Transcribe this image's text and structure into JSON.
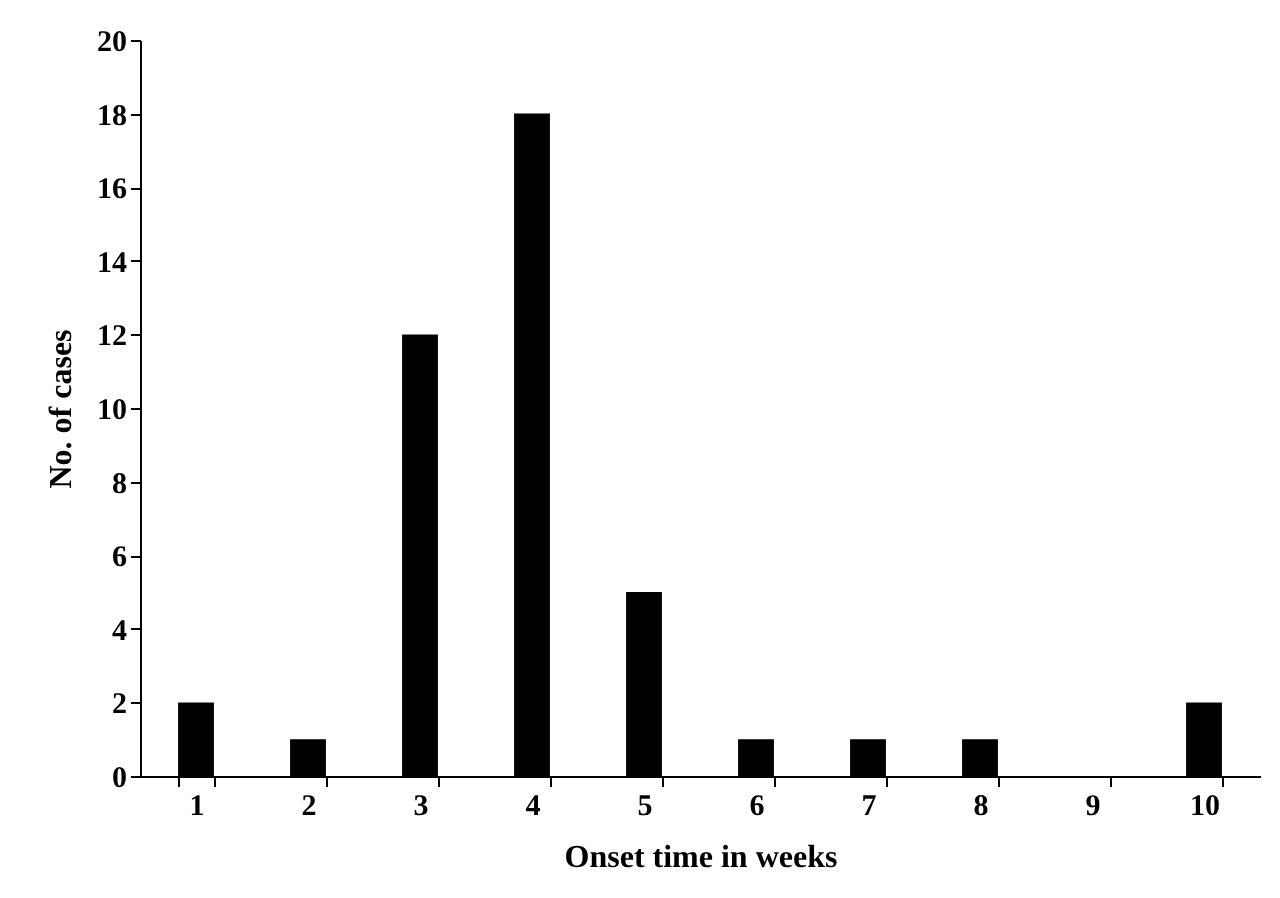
{
  "chart_data": {
    "type": "bar",
    "xlabel": "Onset time in weeks",
    "ylabel": "No. of cases",
    "categories": [
      "1",
      "2",
      "3",
      "4",
      "5",
      "6",
      "7",
      "8",
      "9",
      "10"
    ],
    "values": [
      2,
      1,
      12,
      18,
      5,
      1,
      1,
      1,
      0,
      2
    ],
    "color": "#000000",
    "ylim": [
      0,
      20
    ],
    "yticks": [
      0,
      2,
      4,
      6,
      8,
      10,
      12,
      14,
      16,
      18,
      20
    ]
  }
}
